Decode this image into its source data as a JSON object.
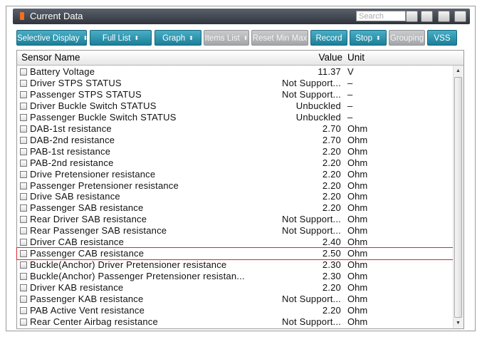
{
  "header": {
    "title": "Current Data",
    "search_placeholder": "Search"
  },
  "toolbar": {
    "buttons": [
      {
        "label": "Selective Display",
        "dropdown": true,
        "enabled": true
      },
      {
        "label": "Full List",
        "dropdown": true,
        "enabled": true
      },
      {
        "label": "Graph",
        "dropdown": true,
        "enabled": true
      },
      {
        "label": "Items List",
        "dropdown": true,
        "enabled": false
      },
      {
        "label": "Reset Min Max",
        "dropdown": false,
        "enabled": false
      },
      {
        "label": "Record",
        "dropdown": false,
        "enabled": true
      },
      {
        "label": "Stop",
        "dropdown": true,
        "enabled": true
      },
      {
        "label": "Grouping",
        "dropdown": false,
        "enabled": false
      },
      {
        "label": "VSS",
        "dropdown": false,
        "enabled": true
      }
    ]
  },
  "table": {
    "columns": [
      "Sensor Name",
      "Value",
      "Unit"
    ],
    "highlight_row": 16,
    "rows": [
      [
        "Battery Voltage",
        "11.37",
        "V"
      ],
      [
        "Driver STPS STATUS",
        "Not Support...",
        "–"
      ],
      [
        "Passenger STPS STATUS",
        "Not Support...",
        "–"
      ],
      [
        "Driver Buckle Switch STATUS",
        "Unbuckled",
        "–"
      ],
      [
        "Passenger Buckle Switch STATUS",
        "Unbuckled",
        "–"
      ],
      [
        "DAB-1st resistance",
        "2.70",
        "Ohm"
      ],
      [
        "DAB-2nd resistance",
        "2.70",
        "Ohm"
      ],
      [
        "PAB-1st resistance",
        "2.20",
        "Ohm"
      ],
      [
        "PAB-2nd resistance",
        "2.20",
        "Ohm"
      ],
      [
        "Drive Pretensioner resistance",
        "2.20",
        "Ohm"
      ],
      [
        "Passenger Pretensioner resistance",
        "2.20",
        "Ohm"
      ],
      [
        "Drive SAB resistance",
        "2.20",
        "Ohm"
      ],
      [
        "Passenger SAB resistance",
        "2.20",
        "Ohm"
      ],
      [
        "Rear Driver SAB resistance",
        "Not Support...",
        "Ohm"
      ],
      [
        "Rear Passenger SAB resistance",
        "Not Support...",
        "Ohm"
      ],
      [
        "Driver CAB resistance",
        "2.40",
        "Ohm"
      ],
      [
        "Passenger CAB resistance",
        "2.50",
        "Ohm"
      ],
      [
        "Buckle(Anchor) Driver Pretensioner resistance",
        "2.30",
        "Ohm"
      ],
      [
        "Buckle(Anchor) Passenger Pretensioner resistan...",
        "2.30",
        "Ohm"
      ],
      [
        "Driver KAB resistance",
        "2.20",
        "Ohm"
      ],
      [
        "Passenger KAB resistance",
        "Not Support...",
        "Ohm"
      ],
      [
        "PAB Active Vent resistance",
        "2.20",
        "Ohm"
      ],
      [
        "Rear Center Airbag resistance",
        "Not Support...",
        "Ohm"
      ]
    ]
  }
}
